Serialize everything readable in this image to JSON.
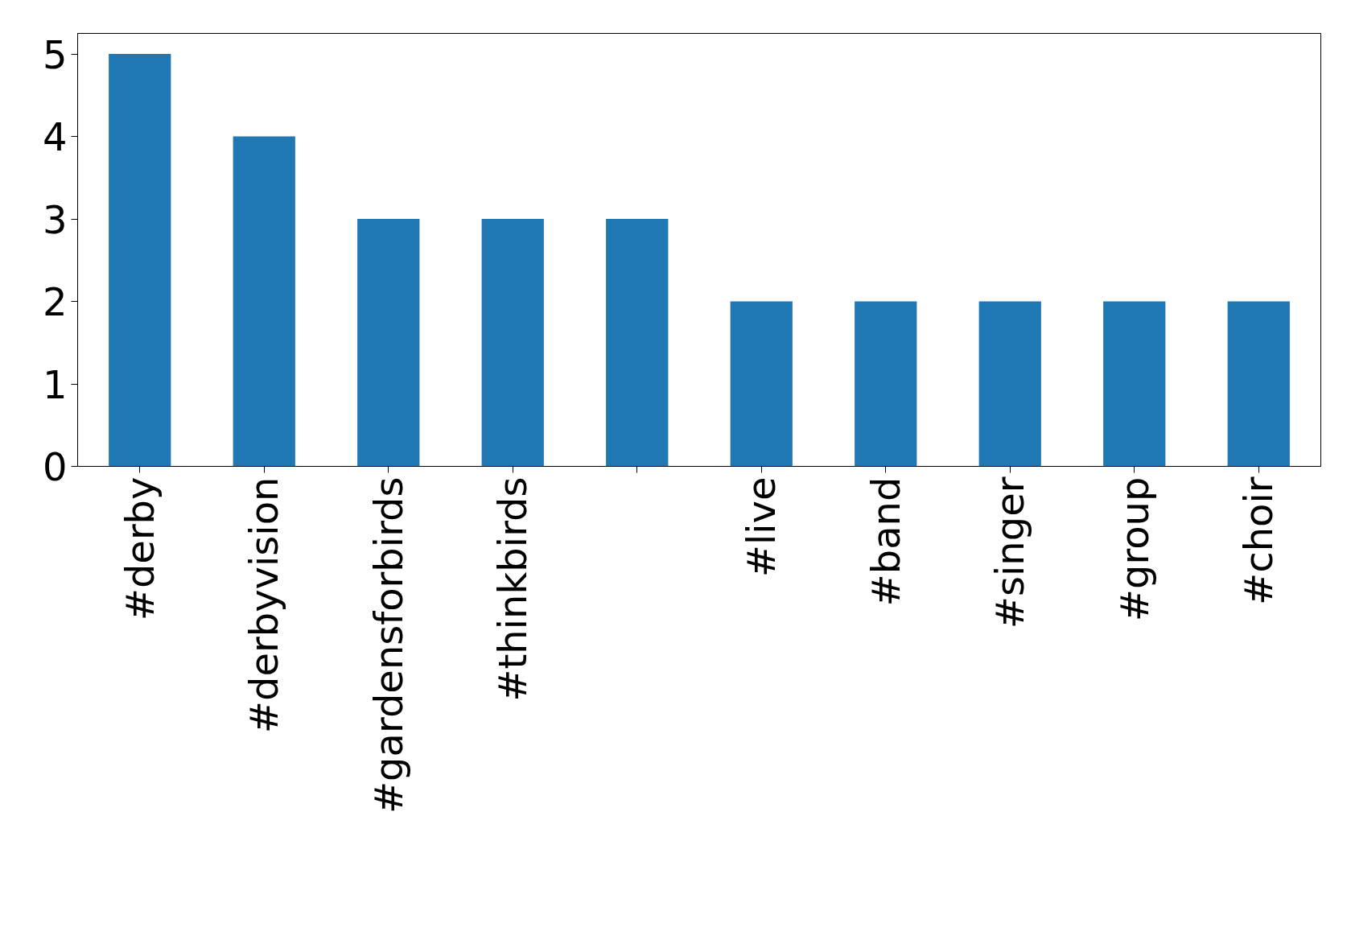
{
  "chart_data": {
    "type": "bar",
    "categories": [
      "#derby",
      "#derbyvision",
      "#gardensforbirds",
      "#thinkbirds",
      null,
      "#live",
      "#band",
      "#singer",
      "#group",
      "#choir"
    ],
    "values": [
      5,
      4,
      3,
      3,
      3,
      2,
      2,
      2,
      2,
      2
    ],
    "color": "#1f77b4",
    "ylim": [
      0,
      5.25
    ],
    "yticks": [
      0,
      1,
      2,
      3,
      4,
      5
    ],
    "grid": false
  }
}
